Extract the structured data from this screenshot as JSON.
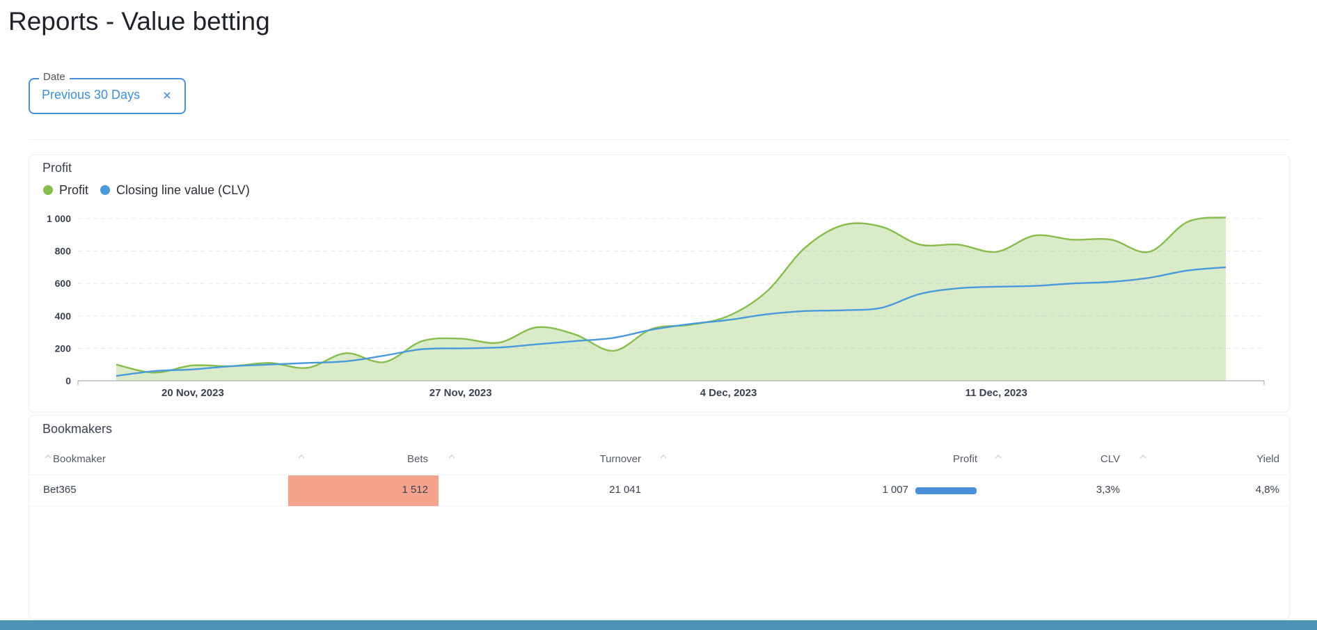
{
  "header": {
    "title": "Reports - Value betting"
  },
  "filter": {
    "label": "Date",
    "value": "Previous 30 Days"
  },
  "chart_data": {
    "type": "area",
    "title": "Profit",
    "x": [
      "2023-11-18",
      "2023-11-19",
      "2023-11-20",
      "2023-11-21",
      "2023-11-22",
      "2023-11-23",
      "2023-11-24",
      "2023-11-25",
      "2023-11-26",
      "2023-11-27",
      "2023-11-28",
      "2023-11-29",
      "2023-11-30",
      "2023-12-01",
      "2023-12-02",
      "2023-12-03",
      "2023-12-04",
      "2023-12-05",
      "2023-12-06",
      "2023-12-07",
      "2023-12-08",
      "2023-12-09",
      "2023-12-10",
      "2023-12-11",
      "2023-12-12",
      "2023-12-13",
      "2023-12-14",
      "2023-12-15",
      "2023-12-16",
      "2023-12-17"
    ],
    "series": [
      {
        "name": "Profit",
        "color": "#86bd4c",
        "fill": true,
        "values": [
          100,
          50,
          95,
          90,
          110,
          80,
          170,
          115,
          245,
          260,
          235,
          330,
          285,
          185,
          320,
          345,
          400,
          550,
          820,
          960,
          950,
          840,
          840,
          795,
          895,
          870,
          870,
          795,
          980,
          1007
        ]
      },
      {
        "name": "Closing line value (CLV)",
        "color": "#4a9ad9",
        "fill": false,
        "values": [
          30,
          60,
          70,
          90,
          100,
          110,
          120,
          155,
          195,
          200,
          205,
          225,
          245,
          265,
          315,
          350,
          375,
          410,
          430,
          435,
          450,
          535,
          570,
          580,
          585,
          600,
          610,
          635,
          680,
          700
        ]
      }
    ],
    "xlim": [
      "2023-11-17",
      "2023-12-18"
    ],
    "xticks": [
      {
        "value": "2023-11-20",
        "label": "20 Nov, 2023"
      },
      {
        "value": "2023-11-27",
        "label": "27 Nov, 2023"
      },
      {
        "value": "2023-12-04",
        "label": "4 Dec, 2023"
      },
      {
        "value": "2023-12-11",
        "label": "11 Dec, 2023"
      }
    ],
    "ylim": [
      0,
      1000
    ],
    "yticks": [
      0,
      200,
      400,
      600,
      800,
      {
        "value": 1000,
        "label": "1 000"
      }
    ],
    "grid": true,
    "legend": "top-left"
  },
  "table": {
    "title": "Bookmakers",
    "columns": [
      "Bookmaker",
      "Bets",
      "Turnover",
      "Profit",
      "CLV",
      "Yield"
    ],
    "rows": [
      [
        "Bet365",
        "1 512",
        "21 041",
        "1 007",
        "3,3%",
        "4,8%"
      ]
    ]
  }
}
